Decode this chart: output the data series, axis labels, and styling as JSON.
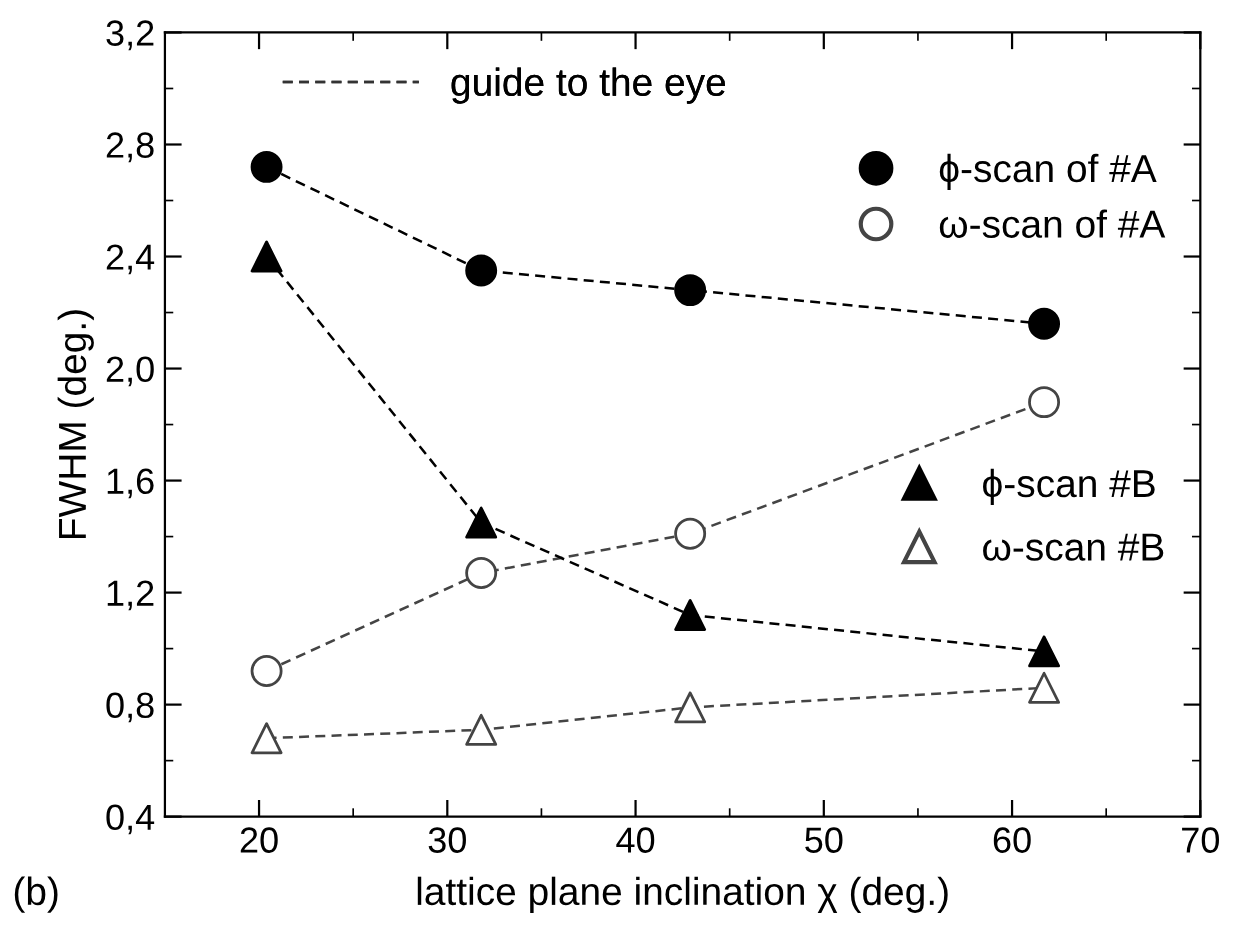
{
  "chart_data": {
    "type": "line",
    "xlabel": "lattice plane inclination χ (deg.)",
    "ylabel": "FWHM (deg.)",
    "x": [
      20.4,
      31.8,
      42.9,
      61.7
    ],
    "series": [
      {
        "name": "ϕ-scan of #A",
        "color": "#000000",
        "marker": "circle",
        "values": [
          2.72,
          2.35,
          2.28,
          2.16
        ]
      },
      {
        "name": "ω-scan of #A",
        "color": "#444444",
        "marker": "circle",
        "values": [
          0.92,
          1.27,
          1.41,
          1.88
        ]
      },
      {
        "name": "ϕ-scan #B",
        "color": "#000000",
        "marker": "triangle",
        "values": [
          2.4,
          1.45,
          1.12,
          0.99
        ]
      },
      {
        "name": "ω-scan #B",
        "color": "#444444",
        "marker": "triangle",
        "values": [
          0.68,
          0.71,
          0.79,
          0.86
        ]
      }
    ],
    "line_style": "dashed",
    "legend": "right",
    "grid": false,
    "xlim": [
      15,
      70
    ],
    "xticks": [
      20,
      30,
      40,
      50,
      60,
      70
    ],
    "ylim": [
      0.4,
      3.2
    ],
    "yticks": [
      {
        "value": 0.4,
        "label": "0,4"
      },
      {
        "value": 0.8,
        "label": "0,8"
      },
      {
        "value": 1.2,
        "label": "1,2"
      },
      {
        "value": 1.6,
        "label": "1,6"
      },
      {
        "value": 2.0,
        "label": "2,0"
      },
      {
        "value": 2.4,
        "label": "2,4"
      },
      {
        "value": 2.8,
        "label": "2,8"
      },
      {
        "value": 3.2,
        "label": "3,2"
      }
    ],
    "annotations": [
      "guide to the eye",
      "(b)"
    ]
  }
}
